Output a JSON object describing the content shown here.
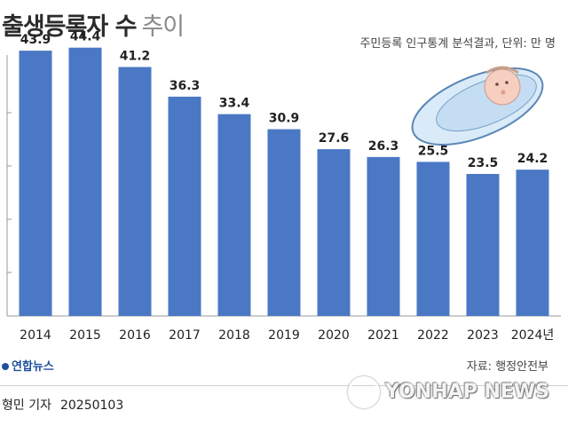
{
  "header": {
    "title": "출생등록자 수",
    "title_suffix": "추이",
    "subtitle": "주민등록 인구통계 분석결과, 단위: 만 명"
  },
  "chart_data": {
    "type": "bar",
    "categories": [
      "2014",
      "2015",
      "2016",
      "2017",
      "2018",
      "2019",
      "2020",
      "2021",
      "2022",
      "2023",
      "2024년"
    ],
    "values": [
      43.9,
      44.4,
      41.2,
      36.3,
      33.4,
      30.9,
      27.6,
      26.3,
      25.5,
      23.5,
      24.2
    ],
    "value_labels": [
      "43.9",
      "44.4",
      "41.2",
      "36.3",
      "33.4",
      "30.9",
      "27.6",
      "26.3",
      "25.5",
      "23.5",
      "24.2"
    ],
    "ylim": [
      0,
      47
    ],
    "bar_color": "#4a78c4",
    "grid": false
  },
  "footer": {
    "logo": "연합뉴스",
    "source": "자료: 행정안전부",
    "reporter": "형민 기자",
    "date": "20250103",
    "watermark": "YONHAP NEWS"
  }
}
